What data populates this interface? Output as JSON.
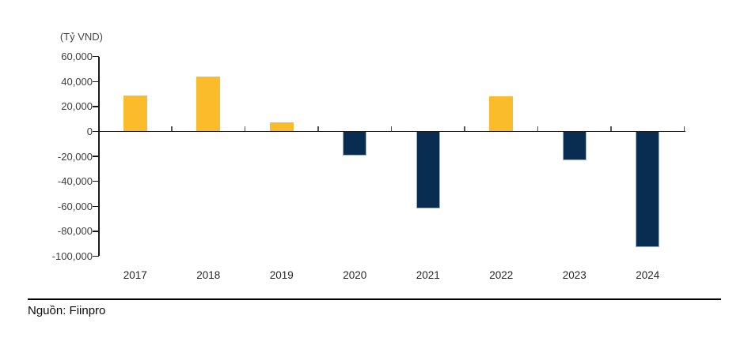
{
  "chart_data": {
    "type": "bar",
    "title": "",
    "categories": [
      "2017",
      "2018",
      "2019",
      "2020",
      "2021",
      "2022",
      "2023",
      "2024"
    ],
    "values": [
      29000,
      44000,
      7000,
      -19000,
      -62000,
      28000,
      -23000,
      -93000
    ],
    "xlabel": "",
    "ylabel": "(Tỷ VND)",
    "unit": "Tỷ VND",
    "ylim": [
      -100000,
      60000
    ],
    "ytick_step": 20000,
    "yticks": [
      60000,
      40000,
      20000,
      0,
      -20000,
      -40000,
      -60000,
      -80000,
      -100000
    ],
    "ytick_labels": [
      "60,000",
      "40,000",
      "20,000",
      "0",
      "-20,000",
      "-40,000",
      "-60,000",
      "-80,000",
      "-100,000"
    ],
    "grid": false,
    "legend_position": "none",
    "colors": {
      "positive_bar": "#FBBC2C",
      "negative_bar": "#082D51",
      "negative_bar_stroke": "#9FB3C6",
      "axis_line": "#1a1a1a",
      "minor_tick": "#555555",
      "tick_label": "#3d3d3d",
      "category_label": "#262626"
    }
  },
  "header": {
    "axis_title": "(Tỷ VND)"
  },
  "footer": {
    "source": "Nguồn: Fiinpro"
  }
}
